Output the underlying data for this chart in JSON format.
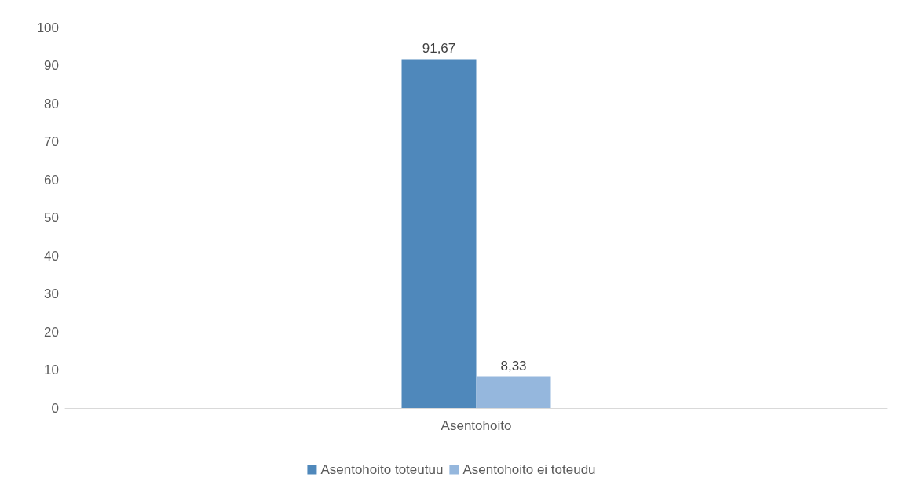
{
  "chart_data": {
    "type": "bar",
    "categories": [
      "Asentohoito"
    ],
    "series": [
      {
        "name": "Asentohoito toteutuu",
        "color": "#4f88bb",
        "values": [
          91.67
        ],
        "value_labels": [
          "91,67"
        ]
      },
      {
        "name": "Asentohoito ei toteudu",
        "color": "#95b7dd",
        "values": [
          8.33
        ],
        "value_labels": [
          "8,33"
        ]
      }
    ],
    "ylim": [
      0,
      100
    ],
    "yticks": [
      0,
      10,
      20,
      30,
      40,
      50,
      60,
      70,
      80,
      90,
      100
    ],
    "grid": false,
    "legend": "bottom"
  }
}
